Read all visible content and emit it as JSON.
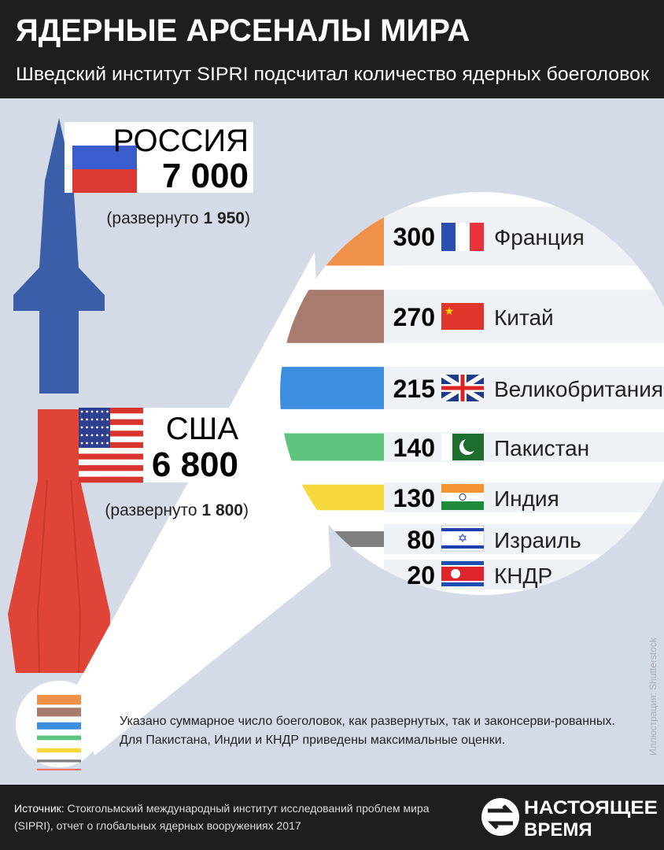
{
  "header": {
    "title": "ЯДЕРНЫЕ АРСЕНАЛЫ МИРА",
    "subtitle": "Шведский институт SIPRI подсчитал количество ядерных боеголовок"
  },
  "leaders": [
    {
      "name": "РОССИЯ",
      "value": 7000,
      "value_label": "7 000",
      "deployed_text": "(развернуто",
      "deployed": 1950,
      "deployed_label": "1 950",
      "close": ")"
    },
    {
      "name": "США",
      "value": 6800,
      "value_label": "6 800",
      "deployed_text": "(развернуто",
      "deployed": 1800,
      "deployed_label": "1 800",
      "close": ")"
    }
  ],
  "chart_data": {
    "type": "bar",
    "categories": [
      "Франция",
      "Китай",
      "Великобритания",
      "Пакистан",
      "Индия",
      "Израиль",
      "КНДР"
    ],
    "values": [
      300,
      270,
      215,
      140,
      130,
      80,
      20
    ],
    "colors": [
      "#f0914a",
      "#a87b6e",
      "#3d8ede",
      "#5fc47e",
      "#f7d83c",
      "#7f7f80",
      "#f0665a"
    ]
  },
  "note": "Указано суммарное число боеголовок, как развернутых, так и законсерви-рованных. Для Пакистана, Индии и КНДР приведены максимальные оценки.",
  "credit": "Иллюстрация: Shutterstock",
  "footer": {
    "source_label": "Источник:",
    "source": "Стокгольмский международный институт исследований проблем мира (SIPRI), отчет о глобальных ядерных вооружениях 2017",
    "logo_top": "НАСТОЯЩЕЕ",
    "logo_bottom": "ВРЕМЯ"
  }
}
